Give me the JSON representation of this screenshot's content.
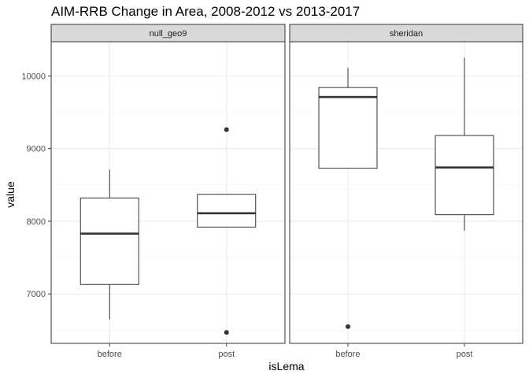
{
  "chart_data": {
    "type": "box",
    "title": "AIM-RRB Change in Area, 2008-2012 vs 2013-2017",
    "xlabel": "isLema",
    "ylabel": "value",
    "ylim": [
      6320,
      10470
    ],
    "yticks": [
      7000,
      8000,
      9000,
      10000
    ],
    "y_minor": [
      6500,
      7500,
      8500,
      9500
    ],
    "categories": [
      "before",
      "post"
    ],
    "grid": true,
    "colors": {
      "panel_border": "#333333",
      "strip_fill": "#d9d9d9",
      "grid_major": "#ebebeb",
      "grid_minor": "#f5f5f5",
      "box_line": "#333333"
    },
    "facets": [
      {
        "name": "null_geo9",
        "boxes": [
          {
            "x": "before",
            "whisker_low": 6650,
            "q1": 7130,
            "median": 7830,
            "q3": 8320,
            "whisker_high": 8710,
            "outliers": []
          },
          {
            "x": "post",
            "whisker_low": 7920,
            "q1": 7920,
            "median": 8110,
            "q3": 8370,
            "whisker_high": 8370,
            "outliers": [
              9260,
              6470
            ]
          }
        ]
      },
      {
        "name": "sheridan",
        "boxes": [
          {
            "x": "before",
            "whisker_low": 8730,
            "q1": 8730,
            "median": 9710,
            "q3": 9840,
            "whisker_high": 10110,
            "outliers": [
              6550
            ]
          },
          {
            "x": "post",
            "whisker_low": 7870,
            "q1": 8090,
            "median": 8740,
            "q3": 9180,
            "whisker_high": 10250,
            "outliers": []
          }
        ]
      }
    ]
  }
}
